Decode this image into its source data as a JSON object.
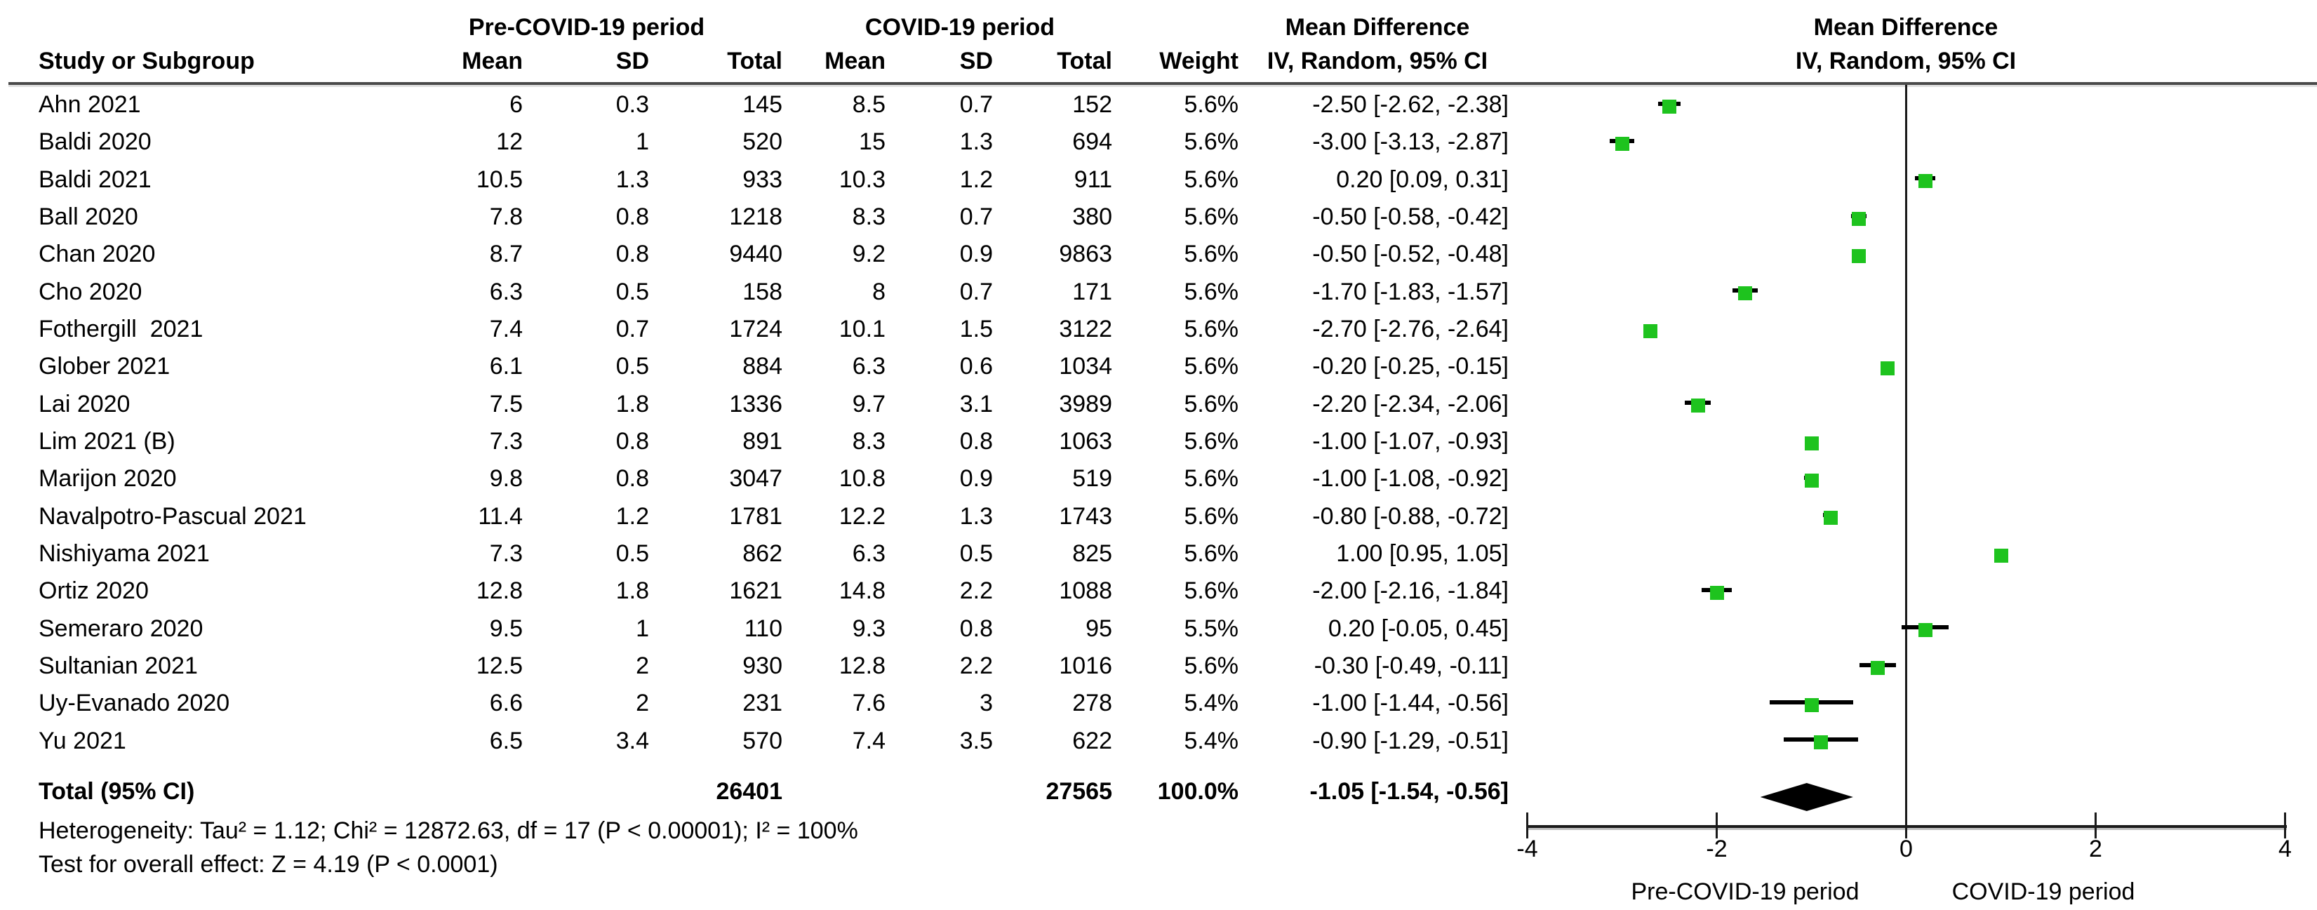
{
  "group_headers": {
    "pre": "Pre-COVID-19 period",
    "covid": "COVID-19 period",
    "md_text_col_title": "Mean Difference",
    "md_text_col_sub": "IV, Random, 95% CI",
    "md_plot_col_title": "Mean Difference",
    "md_plot_col_sub": "IV, Random, 95% CI"
  },
  "columns": {
    "study": "Study or Subgroup",
    "pre_mean": "Mean",
    "pre_sd": "SD",
    "pre_total": "Total",
    "covid_mean": "Mean",
    "covid_sd": "SD",
    "covid_total": "Total",
    "weight": "Weight"
  },
  "studies": [
    {
      "name": "Ahn 2021",
      "pm": "6",
      "psd": "0.3",
      "pt": "145",
      "cm": "8.5",
      "csd": "0.7",
      "ct": "152",
      "w": "5.6%",
      "ci": "-2.50 [-2.62, -2.38]"
    },
    {
      "name": "Baldi 2020",
      "pm": "12",
      "psd": "1",
      "pt": "520",
      "cm": "15",
      "csd": "1.3",
      "ct": "694",
      "w": "5.6%",
      "ci": "-3.00 [-3.13, -2.87]"
    },
    {
      "name": "Baldi 2021",
      "pm": "10.5",
      "psd": "1.3",
      "pt": "933",
      "cm": "10.3",
      "csd": "1.2",
      "ct": "911",
      "w": "5.6%",
      "ci": "0.20 [0.09, 0.31]"
    },
    {
      "name": "Ball 2020",
      "pm": "7.8",
      "psd": "0.8",
      "pt": "1218",
      "cm": "8.3",
      "csd": "0.7",
      "ct": "380",
      "w": "5.6%",
      "ci": "-0.50 [-0.58, -0.42]"
    },
    {
      "name": "Chan 2020",
      "pm": "8.7",
      "psd": "0.8",
      "pt": "9440",
      "cm": "9.2",
      "csd": "0.9",
      "ct": "9863",
      "w": "5.6%",
      "ci": "-0.50 [-0.52, -0.48]"
    },
    {
      "name": "Cho 2020",
      "pm": "6.3",
      "psd": "0.5",
      "pt": "158",
      "cm": "8",
      "csd": "0.7",
      "ct": "171",
      "w": "5.6%",
      "ci": "-1.70 [-1.83, -1.57]"
    },
    {
      "name": "Fothergill  2021",
      "pm": "7.4",
      "psd": "0.7",
      "pt": "1724",
      "cm": "10.1",
      "csd": "1.5",
      "ct": "3122",
      "w": "5.6%",
      "ci": "-2.70 [-2.76, -2.64]"
    },
    {
      "name": "Glober 2021",
      "pm": "6.1",
      "psd": "0.5",
      "pt": "884",
      "cm": "6.3",
      "csd": "0.6",
      "ct": "1034",
      "w": "5.6%",
      "ci": "-0.20 [-0.25, -0.15]"
    },
    {
      "name": "Lai 2020",
      "pm": "7.5",
      "psd": "1.8",
      "pt": "1336",
      "cm": "9.7",
      "csd": "3.1",
      "ct": "3989",
      "w": "5.6%",
      "ci": "-2.20 [-2.34, -2.06]"
    },
    {
      "name": "Lim 2021 (B)",
      "pm": "7.3",
      "psd": "0.8",
      "pt": "891",
      "cm": "8.3",
      "csd": "0.8",
      "ct": "1063",
      "w": "5.6%",
      "ci": "-1.00 [-1.07, -0.93]"
    },
    {
      "name": "Marijon 2020",
      "pm": "9.8",
      "psd": "0.8",
      "pt": "3047",
      "cm": "10.8",
      "csd": "0.9",
      "ct": "519",
      "w": "5.6%",
      "ci": "-1.00 [-1.08, -0.92]"
    },
    {
      "name": "Navalpotro-Pascual 2021",
      "pm": "11.4",
      "psd": "1.2",
      "pt": "1781",
      "cm": "12.2",
      "csd": "1.3",
      "ct": "1743",
      "w": "5.6%",
      "ci": "-0.80 [-0.88, -0.72]"
    },
    {
      "name": "Nishiyama 2021",
      "pm": "7.3",
      "psd": "0.5",
      "pt": "862",
      "cm": "6.3",
      "csd": "0.5",
      "ct": "825",
      "w": "5.6%",
      "ci": "1.00 [0.95, 1.05]"
    },
    {
      "name": "Ortiz 2020",
      "pm": "12.8",
      "psd": "1.8",
      "pt": "1621",
      "cm": "14.8",
      "csd": "2.2",
      "ct": "1088",
      "w": "5.6%",
      "ci": "-2.00 [-2.16, -1.84]"
    },
    {
      "name": "Semeraro 2020",
      "pm": "9.5",
      "psd": "1",
      "pt": "110",
      "cm": "9.3",
      "csd": "0.8",
      "ct": "95",
      "w": "5.5%",
      "ci": "0.20 [-0.05, 0.45]"
    },
    {
      "name": "Sultanian 2021",
      "pm": "12.5",
      "psd": "2",
      "pt": "930",
      "cm": "12.8",
      "csd": "2.2",
      "ct": "1016",
      "w": "5.6%",
      "ci": "-0.30 [-0.49, -0.11]"
    },
    {
      "name": "Uy-Evanado 2020",
      "pm": "6.6",
      "psd": "2",
      "pt": "231",
      "cm": "7.6",
      "csd": "3",
      "ct": "278",
      "w": "5.4%",
      "ci": "-1.00 [-1.44, -0.56]"
    },
    {
      "name": "Yu 2021",
      "pm": "6.5",
      "psd": "3.4",
      "pt": "570",
      "cm": "7.4",
      "csd": "3.5",
      "ct": "622",
      "w": "5.4%",
      "ci": "-0.90 [-1.29, -0.51]"
    }
  ],
  "total": {
    "label": "Total (95% CI)",
    "pre_total": "26401",
    "covid_total": "27565",
    "weight": "100.0%",
    "ci": "-1.05 [-1.54, -0.56]"
  },
  "footer": {
    "heterogeneity": "Heterogeneity: Tau² = 1.12; Chi² = 12872.63, df = 17 (P < 0.00001); I² = 100%",
    "overall_effect": "Test for overall effect: Z = 4.19 (P < 0.0001)"
  },
  "colors": {
    "marker_green": "#1ec31e",
    "line_black": "#000000",
    "rule_gray": "#4a4a4a"
  },
  "chart_data": {
    "type": "scatter",
    "subtype": "forest-plot",
    "title": "Mean Difference",
    "subtitle": "IV, Random, 95% CI",
    "x_axis": {
      "min": -4,
      "max": 4,
      "ticks": [
        -4,
        -2,
        0,
        2,
        4
      ],
      "tick_labels": [
        "-4",
        "-2",
        "0",
        "2",
        "4"
      ],
      "left_caption": "Pre-COVID-19 period",
      "right_caption": "COVID-19 period",
      "grid": false,
      "zero_reference_line": true
    },
    "series": [
      {
        "name": "Ahn 2021",
        "mean": -2.5,
        "ci": [
          -2.62,
          -2.38
        ],
        "weight_pct": 5.6
      },
      {
        "name": "Baldi 2020",
        "mean": -3.0,
        "ci": [
          -3.13,
          -2.87
        ],
        "weight_pct": 5.6
      },
      {
        "name": "Baldi 2021",
        "mean": 0.2,
        "ci": [
          0.09,
          0.31
        ],
        "weight_pct": 5.6
      },
      {
        "name": "Ball 2020",
        "mean": -0.5,
        "ci": [
          -0.58,
          -0.42
        ],
        "weight_pct": 5.6
      },
      {
        "name": "Chan 2020",
        "mean": -0.5,
        "ci": [
          -0.52,
          -0.48
        ],
        "weight_pct": 5.6
      },
      {
        "name": "Cho 2020",
        "mean": -1.7,
        "ci": [
          -1.83,
          -1.57
        ],
        "weight_pct": 5.6
      },
      {
        "name": "Fothergill  2021",
        "mean": -2.7,
        "ci": [
          -2.76,
          -2.64
        ],
        "weight_pct": 5.6
      },
      {
        "name": "Glober 2021",
        "mean": -0.2,
        "ci": [
          -0.25,
          -0.15
        ],
        "weight_pct": 5.6
      },
      {
        "name": "Lai 2020",
        "mean": -2.2,
        "ci": [
          -2.34,
          -2.06
        ],
        "weight_pct": 5.6
      },
      {
        "name": "Lim 2021 (B)",
        "mean": -1.0,
        "ci": [
          -1.07,
          -0.93
        ],
        "weight_pct": 5.6
      },
      {
        "name": "Marijon 2020",
        "mean": -1.0,
        "ci": [
          -1.08,
          -0.92
        ],
        "weight_pct": 5.6
      },
      {
        "name": "Navalpotro-Pascual 2021",
        "mean": -0.8,
        "ci": [
          -0.88,
          -0.72
        ],
        "weight_pct": 5.6
      },
      {
        "name": "Nishiyama 2021",
        "mean": 1.0,
        "ci": [
          0.95,
          1.05
        ],
        "weight_pct": 5.6
      },
      {
        "name": "Ortiz 2020",
        "mean": -2.0,
        "ci": [
          -2.16,
          -1.84
        ],
        "weight_pct": 5.6
      },
      {
        "name": "Semeraro 2020",
        "mean": 0.2,
        "ci": [
          -0.05,
          0.45
        ],
        "weight_pct": 5.5
      },
      {
        "name": "Sultanian 2021",
        "mean": -0.3,
        "ci": [
          -0.49,
          -0.11
        ],
        "weight_pct": 5.6
      },
      {
        "name": "Uy-Evanado 2020",
        "mean": -1.0,
        "ci": [
          -1.44,
          -0.56
        ],
        "weight_pct": 5.4
      },
      {
        "name": "Yu 2021",
        "mean": -0.9,
        "ci": [
          -1.29,
          -0.51
        ],
        "weight_pct": 5.4
      }
    ],
    "total": {
      "name": "Total (95% CI)",
      "mean": -1.05,
      "ci": [
        -1.54,
        -0.56
      ],
      "weight_pct": 100.0,
      "pre_n": 26401,
      "covid_n": 27565
    }
  }
}
